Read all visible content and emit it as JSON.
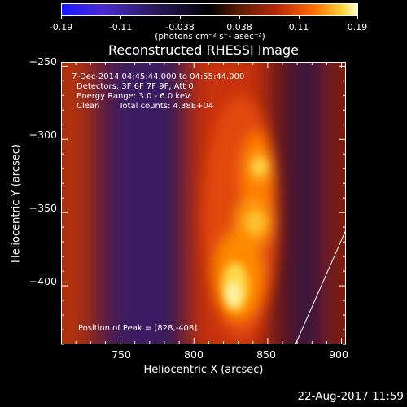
{
  "colorbar": {
    "tick_labels": [
      "-0.19",
      "-0.11",
      "-0.038",
      "0.038",
      "0.11",
      "0.19"
    ],
    "units": "(photons cm⁻² s⁻¹ asec⁻²)"
  },
  "title": "Reconstructed RHESSI Image",
  "annotations": {
    "time_range": "7-Dec-2014 04:45:44.000 to 04:55:44.000",
    "detectors": "Detectors: 3F 6F 7F 9F, Att 0",
    "energy": "Energy Range: 3.0 - 6.0 keV",
    "clean": "Clean",
    "total_counts": "Total counts: 4.38E+04",
    "peak": "Position of Peak = [828,-408]"
  },
  "chart_data": {
    "type": "heatmap",
    "title": "Reconstructed RHESSI Image",
    "xlabel": "Heliocentric X (arcsec)",
    "ylabel": "Heliocentric Y (arcsec)",
    "xlim": [
      710,
      903
    ],
    "ylim": [
      -440,
      -247
    ],
    "x_ticks": [
      "750",
      "800",
      "850",
      "900"
    ],
    "y_ticks": [
      "−250",
      "−300",
      "−350",
      "−400"
    ],
    "x_tick_values": [
      750,
      800,
      850,
      900
    ],
    "y_tick_values": [
      -250,
      -300,
      -350,
      -400
    ],
    "color_range": [
      -0.19,
      0.19
    ],
    "colormap": "blue-purple-black-red-yellow-white",
    "peak_position": [
      828,
      -408
    ],
    "bright_sources": [
      {
        "x": 828,
        "y": -408,
        "level": 1.0
      },
      {
        "x": 836,
        "y": -385,
        "level": 0.85
      },
      {
        "x": 845,
        "y": -360,
        "level": 0.8
      },
      {
        "x": 846,
        "y": -320,
        "level": 0.75
      }
    ],
    "limb_line": [
      [
        868,
        -440
      ],
      [
        903,
        -360
      ]
    ],
    "colors": {
      "background": "#000000",
      "axes": "#ffffff"
    }
  },
  "date_stamp": "22-Aug-2017 11:59"
}
